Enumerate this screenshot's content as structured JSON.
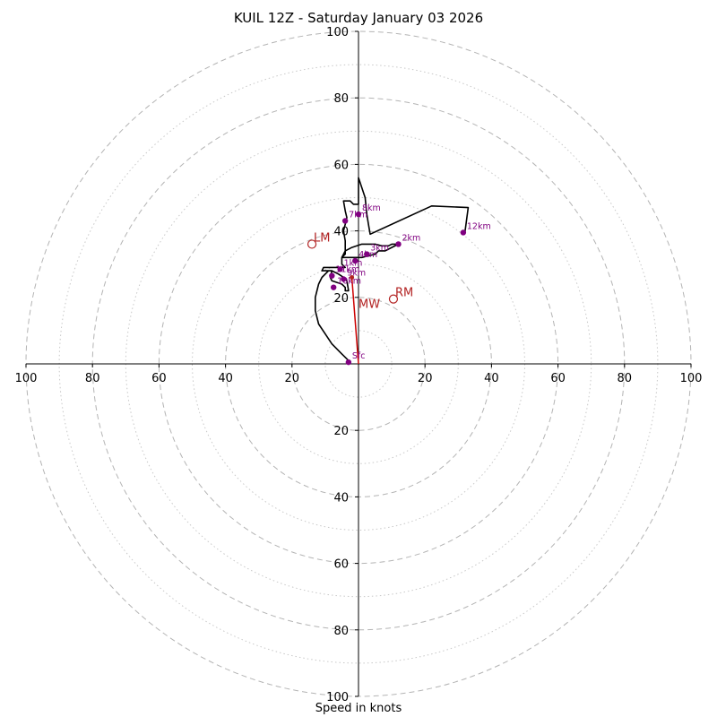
{
  "chart_data": {
    "type": "hodograph",
    "title": "KUIL 12Z - Saturday January 03 2026",
    "xlabel": "Speed in knots",
    "units": "knots",
    "range": [
      -100,
      100
    ],
    "major_rings": [
      20,
      40,
      60,
      80,
      100
    ],
    "minor_rings": [
      10,
      30,
      50,
      70,
      90
    ],
    "tick_labels": [
      "20",
      "40",
      "60",
      "80",
      "100"
    ],
    "hodograph_trace": [
      [
        -3,
        1
      ],
      [
        -5,
        3
      ],
      [
        -8,
        6
      ],
      [
        -10,
        9
      ],
      [
        -12,
        12
      ],
      [
        -13,
        16
      ],
      [
        -13,
        20
      ],
      [
        -12,
        24
      ],
      [
        -11,
        26
      ],
      [
        -9,
        28
      ],
      [
        -8,
        28
      ],
      [
        -8.5,
        26
      ],
      [
        -8,
        25
      ],
      [
        -5,
        24
      ],
      [
        -4,
        23
      ],
      [
        -4,
        22
      ],
      [
        -3,
        22
      ],
      [
        -3.5,
        25
      ],
      [
        -4.5,
        26
      ],
      [
        -6,
        27
      ],
      [
        -8,
        28
      ],
      [
        -11,
        28
      ],
      [
        -10.5,
        29
      ],
      [
        -7,
        29
      ],
      [
        -4,
        29
      ],
      [
        -5,
        30
      ],
      [
        -5,
        32
      ],
      [
        -4,
        34
      ],
      [
        -2,
        35
      ],
      [
        1,
        36
      ],
      [
        3,
        36
      ],
      [
        5,
        36
      ],
      [
        7,
        35.5
      ],
      [
        9,
        35.5
      ],
      [
        10,
        36
      ],
      [
        12,
        36
      ],
      [
        10,
        35
      ],
      [
        8,
        34
      ],
      [
        6,
        34
      ],
      [
        5,
        33
      ],
      [
        3,
        32.5
      ],
      [
        1,
        32
      ],
      [
        -1,
        32
      ],
      [
        -3,
        32
      ],
      [
        -5,
        32
      ],
      [
        -4,
        33
      ],
      [
        -4,
        35
      ],
      [
        -4,
        37
      ],
      [
        -4.5,
        40
      ],
      [
        -4,
        42
      ],
      [
        -3.5,
        44
      ],
      [
        -4,
        46
      ],
      [
        -4.5,
        49
      ],
      [
        -2.5,
        49
      ],
      [
        -1.5,
        48
      ],
      [
        0,
        48
      ],
      [
        0,
        52
      ],
      [
        0,
        56
      ],
      [
        2,
        50
      ],
      [
        2.5,
        45
      ],
      [
        3,
        42
      ],
      [
        3.5,
        39
      ],
      [
        22,
        47.5
      ],
      [
        33,
        47
      ],
      [
        32,
        39.5
      ]
    ],
    "height_markers": [
      {
        "label": "Sfc",
        "u": -3,
        "v": 0.5
      },
      {
        "label": "9km",
        "u": -4.5,
        "v": 25.5
      },
      {
        "label": "10km",
        "u": -7.5,
        "v": 23
      },
      {
        "label": "11km",
        "u": -8,
        "v": 26.5
      },
      {
        "label": "1km",
        "u": -5.5,
        "v": 28.5
      },
      {
        "label": "3km",
        "u": 2.5,
        "v": 33
      },
      {
        "label": "2km",
        "u": 12,
        "v": 36
      },
      {
        "label": "4km",
        "u": -1,
        "v": 31
      },
      {
        "label": "7km",
        "u": -4,
        "v": 43
      },
      {
        "label": "8km",
        "u": 0,
        "v": 45
      },
      {
        "label": "12km",
        "u": 31.5,
        "v": 39.5
      }
    ],
    "storm_motion": {
      "MW": {
        "label": "MW",
        "u": -2,
        "v": 26
      },
      "LM": {
        "label": "LM",
        "u": -14,
        "v": 36
      },
      "RM": {
        "label": "RM",
        "u": 10.5,
        "v": 19.5
      }
    },
    "shear_vector": {
      "from": [
        0,
        0
      ],
      "to": [
        -2,
        26
      ]
    }
  }
}
